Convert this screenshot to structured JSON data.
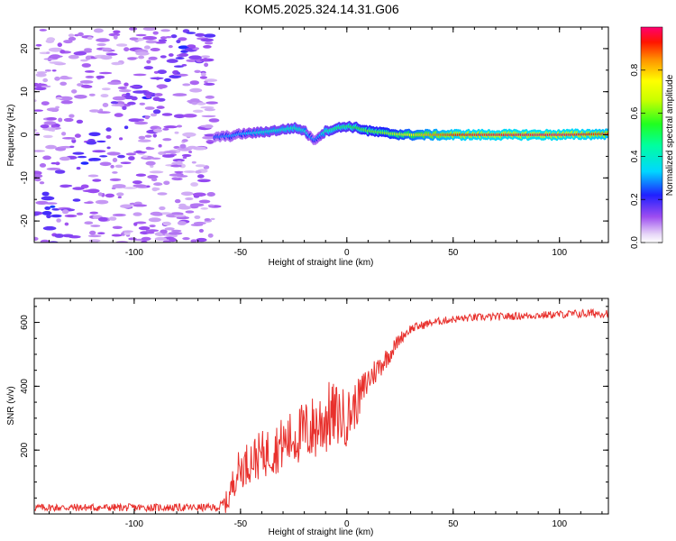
{
  "title": "KOM5.2025.324.14.31.G06",
  "chart_data": [
    {
      "type": "heatmap",
      "title": "KOM5.2025.324.14.31.G06",
      "xlabel": "Height of straight line (km)",
      "ylabel": "Frequency (Hz)",
      "xlim": [
        -147,
        123
      ],
      "ylim": [
        -25,
        25
      ],
      "xticks": [
        -100,
        -50,
        0,
        50,
        100
      ],
      "yticks": [
        -20,
        -10,
        0,
        10,
        20
      ],
      "x_tick_labels": [
        "-100",
        "-50",
        "0",
        "50",
        "100"
      ],
      "y_tick_labels": [
        "-20",
        "-10",
        "0",
        "10",
        "20"
      ],
      "colorbar": {
        "label": "Normalized spectral amplitude",
        "range": [
          0,
          1
        ],
        "ticks": [
          0.0,
          0.2,
          0.4,
          0.6,
          0.8
        ],
        "tick_labels": [
          "0.0",
          "0.2",
          "0.4",
          "0.6",
          "0.8"
        ]
      },
      "ridge": {
        "x": [
          -62,
          -55,
          -50,
          -45,
          -40,
          -35,
          -30,
          -25,
          -20,
          -17,
          -15,
          -13,
          -10,
          -5,
          0,
          5,
          10,
          15,
          20,
          25,
          30,
          40,
          50,
          60,
          80,
          100,
          123
        ],
        "freq": [
          -0.5,
          -0.3,
          0.2,
          0.4,
          0.6,
          0.9,
          1.2,
          1.6,
          1.0,
          -0.6,
          -1.2,
          -0.3,
          0.8,
          1.5,
          2.0,
          1.6,
          0.9,
          0.6,
          0.3,
          0.1,
          0.0,
          0.0,
          0.0,
          0.0,
          0.0,
          0.0,
          0.2
        ],
        "amplitude": [
          0.25,
          0.3,
          0.3,
          0.35,
          0.4,
          0.4,
          0.42,
          0.45,
          0.4,
          0.3,
          0.28,
          0.32,
          0.45,
          0.5,
          0.5,
          0.55,
          0.6,
          0.6,
          0.65,
          0.7,
          0.75,
          0.85,
          0.92,
          0.95,
          0.97,
          0.98,
          0.9
        ]
      },
      "noise_region_x": [
        -147,
        -62
      ]
    },
    {
      "type": "line",
      "xlabel": "Height of straight line (km)",
      "ylabel": "SNR (v/v)",
      "xlim": [
        -147,
        123
      ],
      "ylim": [
        0,
        675
      ],
      "xticks": [
        -100,
        -50,
        0,
        50,
        100
      ],
      "yticks": [
        200,
        400,
        600
      ],
      "x_tick_labels": [
        "-100",
        "-50",
        "0",
        "50",
        "100"
      ],
      "y_tick_labels": [
        "200",
        "400",
        "600"
      ],
      "series": [
        {
          "name": "SNR",
          "color": "#e8302c",
          "trend_x": [
            -147,
            -60,
            -56,
            -52,
            -45,
            -35,
            -25,
            -15,
            -10,
            -5,
            0,
            5,
            10,
            20,
            25,
            30,
            40,
            50,
            60,
            80,
            100,
            115,
            123
          ],
          "trend_y": [
            20,
            20,
            40,
            130,
            170,
            200,
            240,
            270,
            300,
            310,
            300,
            350,
            420,
            500,
            550,
            580,
            600,
            610,
            615,
            620,
            625,
            628,
            630
          ],
          "noise_amplitude": [
            12,
            12,
            40,
            60,
            70,
            80,
            90,
            110,
            120,
            100,
            90,
            70,
            50,
            30,
            20,
            15,
            12,
            12,
            12,
            12,
            12,
            15,
            15
          ]
        }
      ]
    }
  ]
}
